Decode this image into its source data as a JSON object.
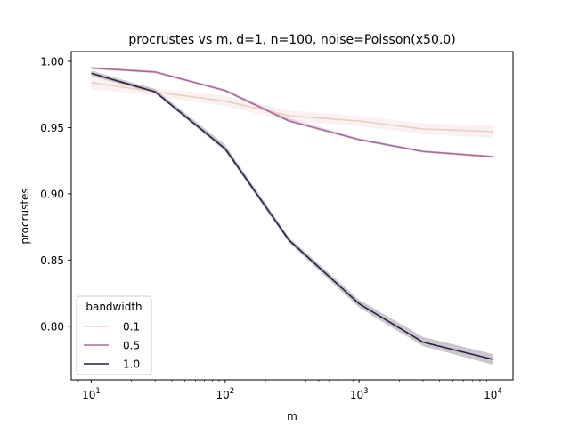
{
  "chart_data": {
    "type": "line",
    "title": "procrustes vs m, d=1, n=100, noise=Poisson(x50.0)",
    "xlabel": "m",
    "ylabel": "procrustes",
    "xscale": "log",
    "xlim": [
      10,
      10000
    ],
    "ylim": [
      0.775,
      1.0
    ],
    "x": [
      10,
      30,
      100,
      300,
      1000,
      3000,
      10000
    ],
    "x_tick_labels": [
      "10^1",
      "10^2",
      "10^3",
      "10^4"
    ],
    "y_ticks": [
      0.8,
      0.85,
      0.9,
      0.95,
      1.0
    ],
    "y_tick_labels": [
      "0.80",
      "0.85",
      "0.90",
      "0.95",
      "1.00"
    ],
    "legend": {
      "title": "bandwidth",
      "position": "lower-left"
    },
    "series": [
      {
        "name": "0.1",
        "color": "#ebcdc7",
        "values": [
          0.984,
          0.977,
          0.97,
          0.959,
          0.955,
          0.949,
          0.947
        ],
        "ci_lower": [
          0.979,
          0.974,
          0.966,
          0.955,
          0.951,
          0.945,
          0.942
        ],
        "ci_upper": [
          0.989,
          0.98,
          0.974,
          0.963,
          0.959,
          0.953,
          0.952
        ]
      },
      {
        "name": "0.5",
        "color": "#a96a9b",
        "values": [
          0.995,
          0.992,
          0.978,
          0.955,
          0.941,
          0.932,
          0.928
        ],
        "ci_lower": [
          0.994,
          0.991,
          0.977,
          0.954,
          0.94,
          0.931,
          0.927
        ],
        "ci_upper": [
          0.996,
          0.993,
          0.979,
          0.957,
          0.942,
          0.933,
          0.929
        ]
      },
      {
        "name": "1.0",
        "color": "#2d1e3e",
        "values": [
          0.991,
          0.977,
          0.934,
          0.865,
          0.817,
          0.788,
          0.775
        ],
        "ci_lower": [
          0.989,
          0.976,
          0.932,
          0.863,
          0.814,
          0.785,
          0.771
        ],
        "ci_upper": [
          0.993,
          0.979,
          0.937,
          0.867,
          0.82,
          0.792,
          0.779
        ]
      }
    ]
  }
}
